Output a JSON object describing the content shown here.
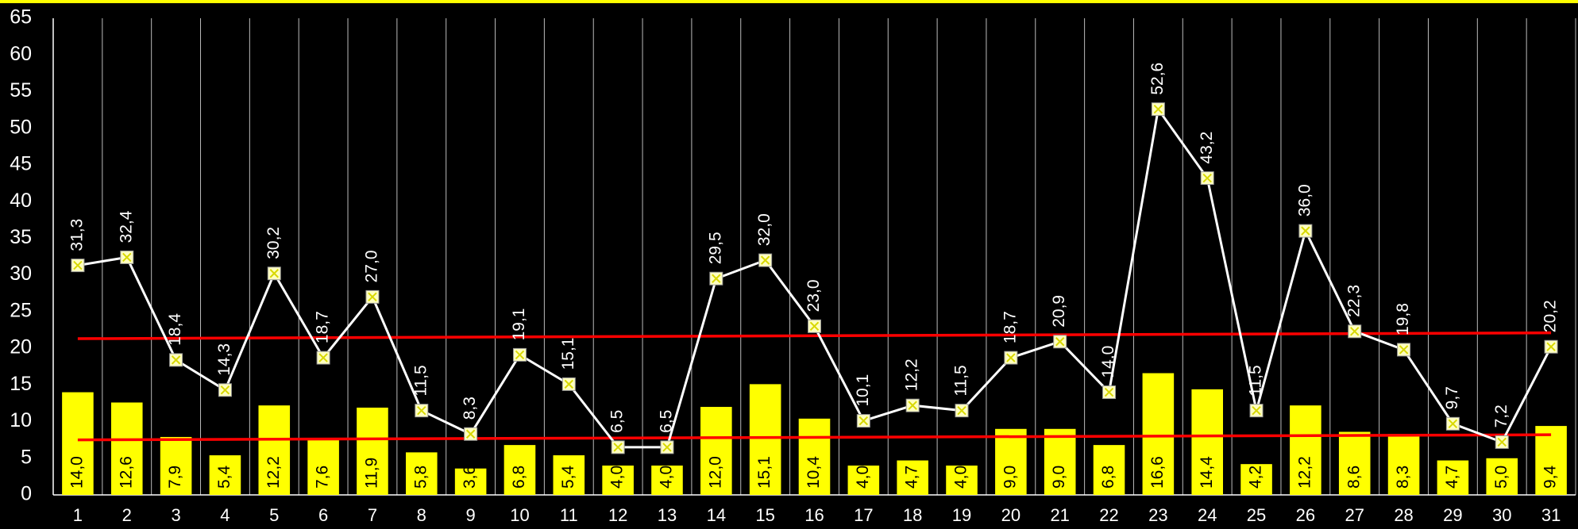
{
  "chart_data": {
    "type": "bar-line",
    "categories": [
      "1",
      "2",
      "3",
      "4",
      "5",
      "6",
      "7",
      "8",
      "9",
      "10",
      "11",
      "12",
      "13",
      "14",
      "15",
      "16",
      "17",
      "18",
      "19",
      "20",
      "21",
      "22",
      "23",
      "24",
      "25",
      "26",
      "27",
      "28",
      "29",
      "30",
      "31"
    ],
    "series": [
      {
        "type": "bar",
        "color": "#ffff00",
        "values": [
          14.0,
          12.6,
          7.9,
          5.4,
          12.2,
          7.6,
          11.9,
          5.8,
          3.6,
          6.8,
          5.4,
          4.0,
          4.0,
          12.0,
          15.1,
          10.4,
          4.0,
          4.7,
          4.0,
          9.0,
          9.0,
          6.8,
          16.6,
          14.4,
          4.2,
          12.2,
          8.6,
          8.3,
          4.7,
          5.0,
          9.4
        ],
        "value_labels": [
          "14,0",
          "12,6",
          "7,9",
          "5,4",
          "12,2",
          "7,6",
          "11,9",
          "5,8",
          "3,6",
          "6,8",
          "5,4",
          "4,0",
          "4,0",
          "12,0",
          "15,1",
          "10,4",
          "4,0",
          "4,7",
          "4,0",
          "9,0",
          "9,0",
          "6,8",
          "16,6",
          "14,4",
          "4,2",
          "12,2",
          "8,6",
          "8,3",
          "4,7",
          "5,0",
          "9,4"
        ]
      },
      {
        "type": "line",
        "color": "#ffffff",
        "marker_color": "#ffffc0",
        "values": [
          31.3,
          32.4,
          18.4,
          14.3,
          30.2,
          18.7,
          27.0,
          11.5,
          8.3,
          19.1,
          15.1,
          6.5,
          6.5,
          29.5,
          32.0,
          23.0,
          10.1,
          12.2,
          11.5,
          18.7,
          20.9,
          14.0,
          52.6,
          43.2,
          11.5,
          36.0,
          22.3,
          19.8,
          9.7,
          7.2,
          20.2
        ],
        "value_labels": [
          "31,3",
          "32,4",
          "18,4",
          "14,3",
          "30,2",
          "18,7",
          "27,0",
          "11,5",
          "8,3",
          "19,1",
          "15,1",
          "6,5",
          "6,5",
          "29,5",
          "32,0",
          "23,0",
          "10,1",
          "12,2",
          "11,5",
          "18,7",
          "20,9",
          "14,0",
          "52,6",
          "43,2",
          "11,5",
          "36,0",
          "22,3",
          "19,8",
          "9,7",
          "7,2",
          "20,2"
        ]
      }
    ],
    "trend_lines": [
      {
        "color": "#ff0000",
        "values": [
          21.3,
          22.1
        ]
      },
      {
        "color": "#ff0000",
        "values": [
          7.5,
          8.2
        ]
      }
    ],
    "ylim": [
      0,
      65
    ],
    "yticks": [
      0,
      5,
      10,
      15,
      20,
      25,
      30,
      35,
      40,
      45,
      50,
      55,
      60,
      65
    ],
    "grid": true
  }
}
